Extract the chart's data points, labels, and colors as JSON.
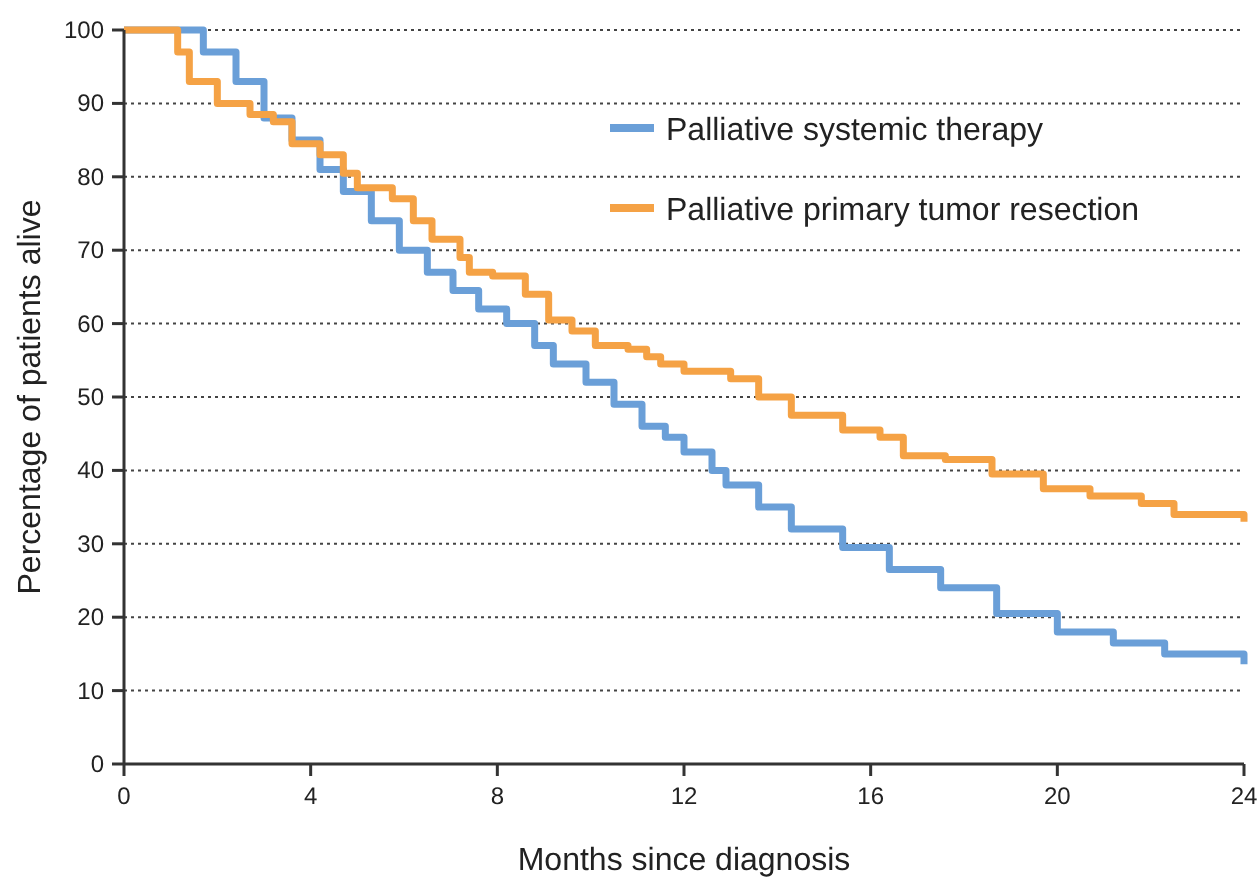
{
  "chart_data": {
    "type": "step",
    "xlabel": "Months since diagnosis",
    "ylabel": "Percentage of patients alive",
    "xlim": [
      0,
      24
    ],
    "ylim": [
      0,
      100
    ],
    "xticks": [
      0,
      4,
      8,
      12,
      16,
      20,
      24
    ],
    "yticks": [
      0,
      10,
      20,
      30,
      40,
      50,
      60,
      70,
      80,
      90,
      100
    ],
    "grid": "y",
    "legend": "top right",
    "series": [
      {
        "name": "Palliative systemic therapy",
        "color": "#6a9fd8",
        "x": [
          0,
          1,
          1.7,
          2.4,
          3,
          3.6,
          4.2,
          4.7,
          5.3,
          5.9,
          6.5,
          7.05,
          7.6,
          8.2,
          8.8,
          9.2,
          9.9,
          10.5,
          11.1,
          11.6,
          12,
          12.6,
          12.9,
          13.6,
          14.3,
          15.4,
          16.4,
          17.5,
          18.7,
          20,
          21.2,
          22.3,
          24
        ],
        "values": [
          100,
          100,
          97,
          93,
          88,
          85,
          81,
          78,
          74,
          70,
          67,
          64.5,
          62,
          60,
          57,
          54.5,
          52,
          49,
          46,
          44.5,
          42.5,
          40,
          38,
          35,
          32,
          29.5,
          26.5,
          24,
          20.5,
          18,
          16.5,
          15,
          13.6
        ]
      },
      {
        "name": "Palliative primary tumor resection",
        "color": "#f5a245",
        "x": [
          0,
          0.9,
          1.15,
          1.4,
          2,
          2.7,
          3.2,
          3.6,
          4.2,
          4.7,
          5,
          5.75,
          6.2,
          6.6,
          7.2,
          7.4,
          7.9,
          8.6,
          9.1,
          9.6,
          10.1,
          10.8,
          11.2,
          11.5,
          12,
          13,
          13.6,
          14.3,
          15.4,
          16.2,
          16.7,
          17.6,
          18.6,
          19.7,
          20.7,
          21.8,
          22.5,
          24
        ],
        "values": [
          100,
          100,
          97,
          93,
          90,
          88.5,
          87.5,
          84.5,
          83,
          80.5,
          78.5,
          77,
          74,
          71.5,
          69,
          67,
          66.5,
          64,
          60.5,
          59,
          57,
          56.5,
          55.5,
          54.5,
          53.5,
          52.5,
          50,
          47.5,
          45.5,
          44.5,
          42,
          41.5,
          39.5,
          37.5,
          36.5,
          35.5,
          34,
          33
        ]
      }
    ]
  }
}
